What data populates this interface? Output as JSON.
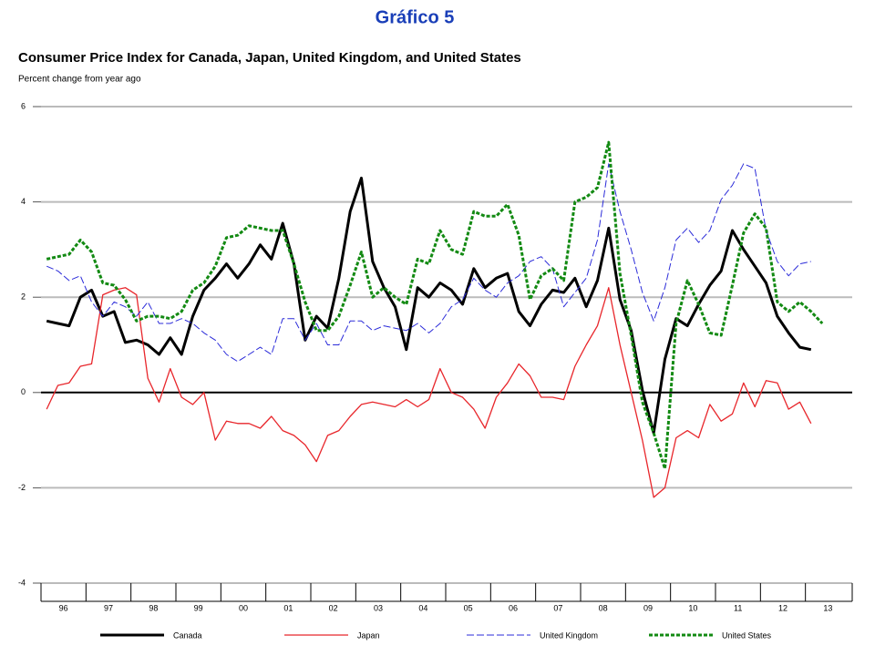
{
  "chart_data": {
    "type": "line",
    "header": "Gráfico 5",
    "title": "Consumer Price Index for Canada, Japan, United Kingdom, and United States",
    "subtitle": "Percent change from year ago",
    "xlim": [
      1996,
      2014
    ],
    "xticks": [
      {
        "value": 1996,
        "label": "96"
      },
      {
        "value": 1997,
        "label": "97"
      },
      {
        "value": 1998,
        "label": "98"
      },
      {
        "value": 1999,
        "label": "99"
      },
      {
        "value": 2000,
        "label": "00"
      },
      {
        "value": 2001,
        "label": "01"
      },
      {
        "value": 2002,
        "label": "02"
      },
      {
        "value": 2003,
        "label": "03"
      },
      {
        "value": 2004,
        "label": "04"
      },
      {
        "value": 2005,
        "label": "05"
      },
      {
        "value": 2006,
        "label": "06"
      },
      {
        "value": 2007,
        "label": "07"
      },
      {
        "value": 2008,
        "label": "08"
      },
      {
        "value": 2009,
        "label": "09"
      },
      {
        "value": 2010,
        "label": "10"
      },
      {
        "value": 2011,
        "label": "11"
      },
      {
        "value": 2012,
        "label": "12"
      },
      {
        "value": 2013,
        "label": "13"
      }
    ],
    "ylim": [
      -4,
      6
    ],
    "yticks": [
      -4,
      -2,
      0,
      2,
      4,
      6
    ],
    "grid": true,
    "x": [
      1996.125,
      1996.375,
      1996.625,
      1996.875,
      1997.125,
      1997.375,
      1997.625,
      1997.875,
      1998.125,
      1998.375,
      1998.625,
      1998.875,
      1999.125,
      1999.375,
      1999.625,
      1999.875,
      2000.125,
      2000.375,
      2000.625,
      2000.875,
      2001.125,
      2001.375,
      2001.625,
      2001.875,
      2002.125,
      2002.375,
      2002.625,
      2002.875,
      2003.125,
      2003.375,
      2003.625,
      2003.875,
      2004.125,
      2004.375,
      2004.625,
      2004.875,
      2005.125,
      2005.375,
      2005.625,
      2005.875,
      2006.125,
      2006.375,
      2006.625,
      2006.875,
      2007.125,
      2007.375,
      2007.625,
      2007.875,
      2008.125,
      2008.375,
      2008.625,
      2008.875,
      2009.125,
      2009.375,
      2009.625,
      2009.875,
      2010.125,
      2010.375,
      2010.625,
      2010.875,
      2011.125,
      2011.375,
      2011.625,
      2011.875,
      2012.125,
      2012.375,
      2012.625,
      2012.875,
      2013.125,
      2013.375
    ],
    "series": [
      {
        "name": "Canada",
        "color": "#000000",
        "width": 3,
        "dash": "none",
        "values": [
          1.5,
          1.45,
          1.4,
          2.0,
          2.15,
          1.6,
          1.7,
          1.05,
          1.1,
          1.0,
          0.8,
          1.15,
          0.8,
          1.6,
          2.15,
          2.4,
          2.7,
          2.4,
          2.7,
          3.1,
          2.8,
          3.55,
          2.7,
          1.1,
          1.6,
          1.35,
          2.4,
          3.8,
          4.5,
          2.75,
          2.2,
          1.8,
          0.9,
          2.2,
          2.0,
          2.3,
          2.15,
          1.85,
          2.6,
          2.2,
          2.4,
          2.5,
          1.7,
          1.4,
          1.85,
          2.15,
          2.1,
          2.4,
          1.8,
          2.35,
          3.45,
          1.95,
          1.3,
          0.05,
          -0.85,
          0.7,
          1.55,
          1.4,
          1.85,
          2.25,
          2.55,
          3.4,
          3.0,
          2.65,
          2.3,
          1.6,
          1.25,
          0.95,
          0.9,
          null
        ]
      },
      {
        "name": "Japan",
        "color": "#e8262b",
        "width": 1.3,
        "dash": "none",
        "values": [
          -0.35,
          0.15,
          0.2,
          0.55,
          0.6,
          2.05,
          2.15,
          2.2,
          2.05,
          0.3,
          -0.2,
          0.5,
          -0.1,
          -0.25,
          0.0,
          -1.0,
          -0.6,
          -0.65,
          -0.65,
          -0.75,
          -0.5,
          -0.8,
          -0.9,
          -1.1,
          -1.45,
          -0.9,
          -0.8,
          -0.5,
          -0.25,
          -0.2,
          -0.25,
          -0.3,
          -0.15,
          -0.3,
          -0.15,
          0.5,
          0.0,
          -0.1,
          -0.35,
          -0.75,
          -0.1,
          0.2,
          0.6,
          0.35,
          -0.1,
          -0.1,
          -0.15,
          0.55,
          1.0,
          1.4,
          2.2,
          1.0,
          0.0,
          -1.0,
          -2.2,
          -2.0,
          -0.95,
          -0.8,
          -0.95,
          -0.25,
          -0.6,
          -0.45,
          0.2,
          -0.3,
          0.25,
          0.2,
          -0.35,
          -0.2,
          -0.65,
          null
        ]
      },
      {
        "name": "United Kingdom",
        "color": "#2b2bd9",
        "width": 1,
        "dash": "8,3",
        "values": [
          2.65,
          2.55,
          2.35,
          2.45,
          1.9,
          1.6,
          1.9,
          1.8,
          1.6,
          1.9,
          1.45,
          1.45,
          1.55,
          1.45,
          1.25,
          1.1,
          0.8,
          0.65,
          0.8,
          0.95,
          0.8,
          1.55,
          1.55,
          1.1,
          1.45,
          1.0,
          1.0,
          1.5,
          1.5,
          1.3,
          1.4,
          1.35,
          1.3,
          1.45,
          1.25,
          1.45,
          1.8,
          1.95,
          2.4,
          2.15,
          2.0,
          2.3,
          2.45,
          2.75,
          2.85,
          2.6,
          1.8,
          2.1,
          2.4,
          3.2,
          4.8,
          3.8,
          3.0,
          2.1,
          1.5,
          2.2,
          3.2,
          3.45,
          3.15,
          3.4,
          4.05,
          4.35,
          4.8,
          4.7,
          3.4,
          2.75,
          2.45,
          2.7,
          2.75,
          null
        ]
      },
      {
        "name": "United States",
        "color": "#138a13",
        "width": 3,
        "dash": "4,2",
        "values": [
          2.8,
          2.85,
          2.9,
          3.2,
          2.95,
          2.3,
          2.25,
          1.95,
          1.5,
          1.6,
          1.6,
          1.55,
          1.7,
          2.15,
          2.3,
          2.65,
          3.25,
          3.3,
          3.5,
          3.45,
          3.4,
          3.4,
          2.7,
          1.9,
          1.3,
          1.3,
          1.6,
          2.25,
          2.95,
          2.0,
          2.2,
          2.0,
          1.85,
          2.8,
          2.7,
          3.4,
          3.0,
          2.9,
          3.8,
          3.7,
          3.7,
          3.95,
          3.3,
          1.95,
          2.45,
          2.6,
          2.35,
          4.0,
          4.1,
          4.3,
          5.25,
          2.5,
          1.2,
          -0.2,
          -0.85,
          -1.6,
          1.45,
          2.35,
          1.85,
          1.25,
          1.2,
          2.25,
          3.35,
          3.75,
          3.45,
          1.9,
          1.7,
          1.9,
          1.7,
          1.45
        ]
      }
    ]
  }
}
